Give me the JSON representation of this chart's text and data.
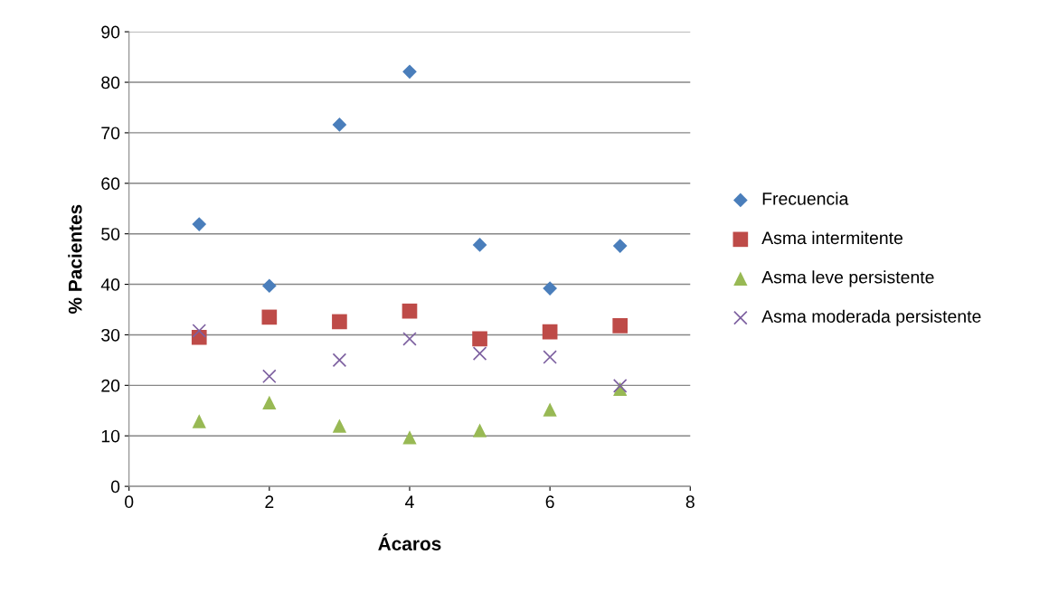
{
  "chart_data": {
    "type": "scatter",
    "xlabel": "Ácaros",
    "ylabel": "% Pacientes",
    "x": [
      1,
      2,
      3,
      4,
      5,
      6,
      7
    ],
    "series": [
      {
        "name": "Frecuencia",
        "color": "#4a7ebb",
        "marker": "diamond",
        "values": [
          51.9,
          39.7,
          71.6,
          82.1,
          47.8,
          39.2,
          47.6
        ]
      },
      {
        "name": "Asma intermitente",
        "color": "#be4b48",
        "marker": "square",
        "values": [
          29.5,
          33.5,
          32.6,
          34.7,
          29.2,
          30.6,
          31.8
        ]
      },
      {
        "name": "Asma leve persistente",
        "color": "#98b954",
        "marker": "triangle",
        "values": [
          12.9,
          16.6,
          12.0,
          9.7,
          11.1,
          15.2,
          19.3
        ]
      },
      {
        "name": "Asma moderada persistente",
        "color": "#7d60a0",
        "marker": "cross",
        "values": [
          30.8,
          21.8,
          25.0,
          29.2,
          26.3,
          25.6,
          19.9
        ]
      }
    ],
    "xlim": [
      0,
      8
    ],
    "xticks": [
      0,
      2,
      4,
      6,
      8
    ],
    "ylim": [
      0,
      90
    ],
    "yticks": [
      0,
      10,
      20,
      30,
      40,
      50,
      60,
      70,
      80,
      90
    ],
    "grid": "y",
    "legend": "right"
  }
}
